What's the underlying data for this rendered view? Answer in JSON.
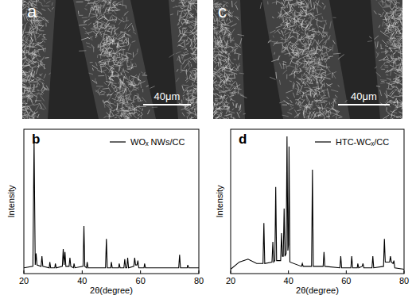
{
  "images": [
    {
      "label": "a",
      "scale_bar": "40μm"
    },
    {
      "label": "c",
      "scale_bar": "40μm"
    }
  ],
  "chart_data": [
    {
      "type": "line",
      "title": "b",
      "xlabel": "2θ(degree)",
      "ylabel": "Intensity",
      "xlim": [
        20,
        80
      ],
      "xticks": [
        20,
        40,
        60,
        80
      ],
      "ylim": [
        0,
        100
      ],
      "tick_labels": "x",
      "legend": "upper right",
      "x": [
        20,
        23.1,
        23.5,
        23.9,
        24.2,
        24.5,
        25.9,
        26.2,
        26.5,
        28.7,
        28.9,
        29.2,
        30.6,
        30.8,
        31.1,
        33.2,
        33.5,
        33.8,
        34.1,
        34.4,
        35.5,
        35.8,
        36.1,
        37,
        37.2,
        37.5,
        40.3,
        40.6,
        40.9,
        41.5,
        41.7,
        42,
        48,
        48.3,
        48.6,
        49.8,
        50,
        50.3,
        52.5,
        52.7,
        53,
        54.3,
        54.6,
        54.9,
        55.3,
        55.6,
        55.9,
        57.7,
        58,
        58.3,
        58.8,
        59.1,
        59.4,
        61.2,
        61.4,
        61.7,
        65,
        68,
        73.1,
        73.4,
        73.7,
        76,
        76.2,
        76.5,
        80
      ],
      "series": [
        {
          "name": "WOₓ NWs/CC",
          "color": "#000000",
          "values": [
            4,
            5,
            93,
            6,
            14,
            6,
            5,
            12,
            5,
            4,
            8,
            4,
            4,
            7,
            4,
            5,
            17,
            6,
            15,
            5,
            5,
            11,
            5,
            4,
            7,
            4,
            5,
            33,
            5,
            4,
            8,
            4,
            4,
            24,
            4,
            4,
            8,
            4,
            4,
            7,
            4,
            4,
            10,
            4,
            4,
            11,
            4,
            5,
            11,
            6,
            6,
            9,
            4,
            4,
            7,
            4,
            4,
            4,
            4,
            13,
            4,
            4,
            6,
            4,
            4
          ]
        }
      ]
    },
    {
      "type": "line",
      "title": "d",
      "xlabel": "2θ(degree)",
      "ylabel": "Intensity",
      "xlim": [
        20,
        80
      ],
      "xticks": [
        20,
        40,
        60,
        80
      ],
      "ylim": [
        0,
        100
      ],
      "tick_labels": "x",
      "legend": "upper right",
      "x": [
        20,
        23,
        26,
        29,
        31.2,
        31.5,
        31.8,
        34.3,
        34.6,
        34.9,
        35.3,
        35.6,
        35.9,
        37.3,
        37.6,
        37.9,
        38.2,
        38.5,
        38.8,
        39.2,
        39.5,
        39.8,
        40.0,
        40.2,
        40.5,
        44.5,
        44.8,
        45.1,
        48.0,
        48.3,
        48.6,
        52,
        52.3,
        52.6,
        57.8,
        58.1,
        58.4,
        61.6,
        61.9,
        62.2,
        63.8,
        64,
        64.3,
        65.5,
        65.8,
        66.1,
        68.9,
        69.2,
        69.5,
        72.9,
        73.2,
        73.5,
        75,
        75.3,
        75.6,
        76.2,
        76.5,
        76.8,
        80
      ],
      "series": [
        {
          "name": "HTC-WCₓ/CC",
          "color": "#000000",
          "values": [
            3,
            8,
            10,
            7,
            7,
            35,
            7,
            8,
            22,
            8,
            9,
            60,
            9,
            9,
            28,
            12,
            12,
            45,
            12,
            14,
            95,
            16,
            20,
            88,
            8,
            5,
            7,
            5,
            5,
            72,
            5,
            5,
            15,
            5,
            4,
            12,
            4,
            4,
            12,
            4,
            4,
            7,
            4,
            5,
            7,
            4,
            4,
            12,
            4,
            5,
            24,
            8,
            8,
            12,
            8,
            7,
            9,
            4,
            3
          ]
        }
      ]
    }
  ]
}
